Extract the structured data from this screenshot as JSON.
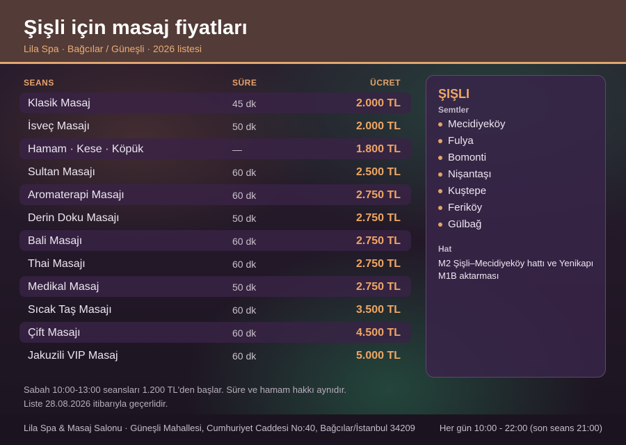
{
  "header": {
    "title": "Şişli için masaj fiyatları",
    "subtitle": "Lila Spa · Bağcılar / Güneşli · 2026 listesi"
  },
  "table": {
    "columns": {
      "session": "SEANS",
      "duration": "SÜRE",
      "price": "ÜCRET"
    },
    "rows": [
      {
        "name": "Klasik Masaj",
        "duration": "45 dk",
        "price": "2.000 TL"
      },
      {
        "name": "İsveç Masajı",
        "duration": "50 dk",
        "price": "2.000 TL"
      },
      {
        "name": "Hamam · Kese · Köpük",
        "duration": "—",
        "price": "1.800 TL"
      },
      {
        "name": "Sultan Masajı",
        "duration": "60 dk",
        "price": "2.500 TL"
      },
      {
        "name": "Aromaterapi Masajı",
        "duration": "60 dk",
        "price": "2.750 TL"
      },
      {
        "name": "Derin Doku Masajı",
        "duration": "50 dk",
        "price": "2.750 TL"
      },
      {
        "name": "Bali Masajı",
        "duration": "60 dk",
        "price": "2.750 TL"
      },
      {
        "name": "Thai Masajı",
        "duration": "60 dk",
        "price": "2.750 TL"
      },
      {
        "name": "Medikal Masaj",
        "duration": "50 dk",
        "price": "2.750 TL"
      },
      {
        "name": "Sıcak Taş Masajı",
        "duration": "60 dk",
        "price": "3.500 TL"
      },
      {
        "name": "Çift Masajı",
        "duration": "60 dk",
        "price": "4.500 TL"
      },
      {
        "name": "Jakuzili VIP Masaj",
        "duration": "60 dk",
        "price": "5.000 TL"
      }
    ]
  },
  "panel": {
    "title": "ŞIŞLI",
    "districts_label": "Semtler",
    "districts": [
      "Mecidiyeköy",
      "Fulya",
      "Bomonti",
      "Nişantaşı",
      "Kuştepe",
      "Feriköy",
      "Gülbağ"
    ],
    "transit_label": "Hat",
    "transit_text": "M2 Şişli–Mecidiyeköy hattı ve Yenikapı M1B aktarması"
  },
  "notes": {
    "line1": "Sabah 10:00-13:00 seansları 1.200 TL'den başlar. Süre ve hamam hakkı aynıdır.",
    "line2": "Liste 28.08.2026 itibarıyla geçerlidir."
  },
  "footer": {
    "address": "Lila Spa & Masaj Salonu · Güneşli Mahallesi, Cumhuriyet Caddesi No:40, Bağcılar/İstanbul 34209",
    "hours": "Her gün 10:00 - 22:00 (son seans 21:00)"
  },
  "colors": {
    "accent": "#e6a36b",
    "header_bg": "#533b37",
    "row_shade": "#3a2246",
    "panel_bg": "#382448"
  }
}
